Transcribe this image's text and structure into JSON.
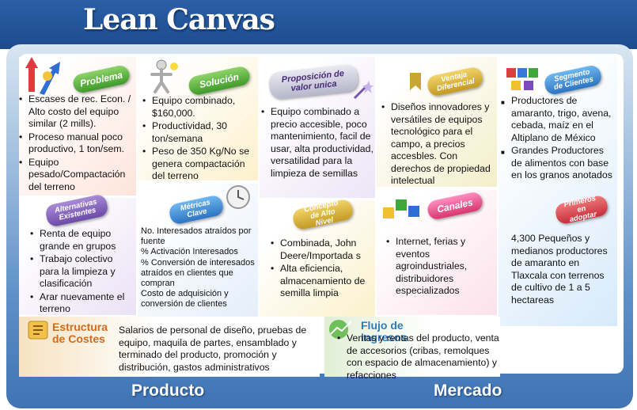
{
  "title": "Lean Canvas",
  "cells": {
    "problema": {
      "badge": "Problema",
      "items": [
        "Escases de rec. Econ. / Alto costo del equipo similar  (2 mills).",
        "Proceso manual poco productivo, 1 ton/sem.",
        "Equipo pesado/Compactación del terreno"
      ]
    },
    "solucion": {
      "badge": "Solución",
      "items": [
        "Equipo combinado, $160,000.",
        "Productividad, 30 ton/semana",
        "Peso de 350 Kg/No se genera compactación del terreno"
      ]
    },
    "propuesta": {
      "badge": "Proposición de valor unica",
      "items": [
        "Equipo combinado a precio accesible, poco mantenimiento, facil de usar, alta productividad, versatilidad para la limpieza de semillas"
      ]
    },
    "ventaja": {
      "badge": "Ventaja Diferencial",
      "items": [
        "Diseños innovadores y versátiles  de equipos tecnológico para el campo,  a precios accesbles. Con derechos de propiedad intelectual"
      ]
    },
    "segmento": {
      "badge": "Segmento de Clientes",
      "items": [
        "Productores de amaranto, trigo, avena, cebada, maíz en el Altiplano de México",
        "Grandes Productores de alimentos con base en los granos anotados"
      ]
    },
    "alternativas": {
      "badge": "Alternativas Existentes",
      "items": [
        "Renta de equipo grande en grupos",
        "Trabajo colectivo para la limpieza y clasificación",
        "Arar nuevamente el terreno"
      ]
    },
    "metricas": {
      "badge": "Métricas Clave",
      "lines": [
        "No. Interesados atraídos por fuente",
        " %  Activación Interesados",
        "%  Conversión de interesados atraídos  en clientes que compran",
        "Costo de adquisición y conversión de clientes"
      ]
    },
    "concepto": {
      "badge": "Concepto de Alto Nivel",
      "items": [
        "Combinada, John Deere/Importada s",
        "Alta eficiencia, almacenamiento de semilla limpia"
      ]
    },
    "canales": {
      "badge": "Canales",
      "items": [
        "Internet, ferias  y eventos agroindustriales, distribuidores especializados"
      ]
    },
    "primeros": {
      "badge": "Primeros en adoptar",
      "text": "4,300 Pequeños y medianos productores de amaranto en Tlaxcala con terrenos de cultivo de 1 a 5 hectareas"
    },
    "costes": {
      "label_line1": "Estructura",
      "label_line2": "de Costes",
      "text": "Salarios de personal de diseño, pruebas de equipo, maquila de partes, ensamblado y terminado del producto, promoción y distribución, gastos administrativos"
    },
    "ingresos": {
      "label_line1": "Flujo de",
      "label_line2": "Ingresos",
      "text": "Ventas y rentas del producto, venta de accesorios (cribas, remolques con espacio de almacenamiento) y refacciones"
    }
  },
  "footer": {
    "left": "Producto",
    "right": "Mercado"
  },
  "colors": {
    "header": "#1d4b8e",
    "board": "#5d8fc7",
    "problema_bg": "#fde9e3",
    "solucion_bg": "#fdf3d6",
    "propuesta_bg": "#efe9f7",
    "ventaja_bg": "#f4f1d8",
    "segmento_bg": "#dfeefa",
    "alternativas_bg": "#efe7f6",
    "metricas_bg": "#eaf2fb",
    "concepto_bg": "#fbf4d6",
    "canales_bg": "#fde8ee",
    "costes_bg": "#f7e6c9",
    "ingresos_bg": "#e8f3df"
  }
}
